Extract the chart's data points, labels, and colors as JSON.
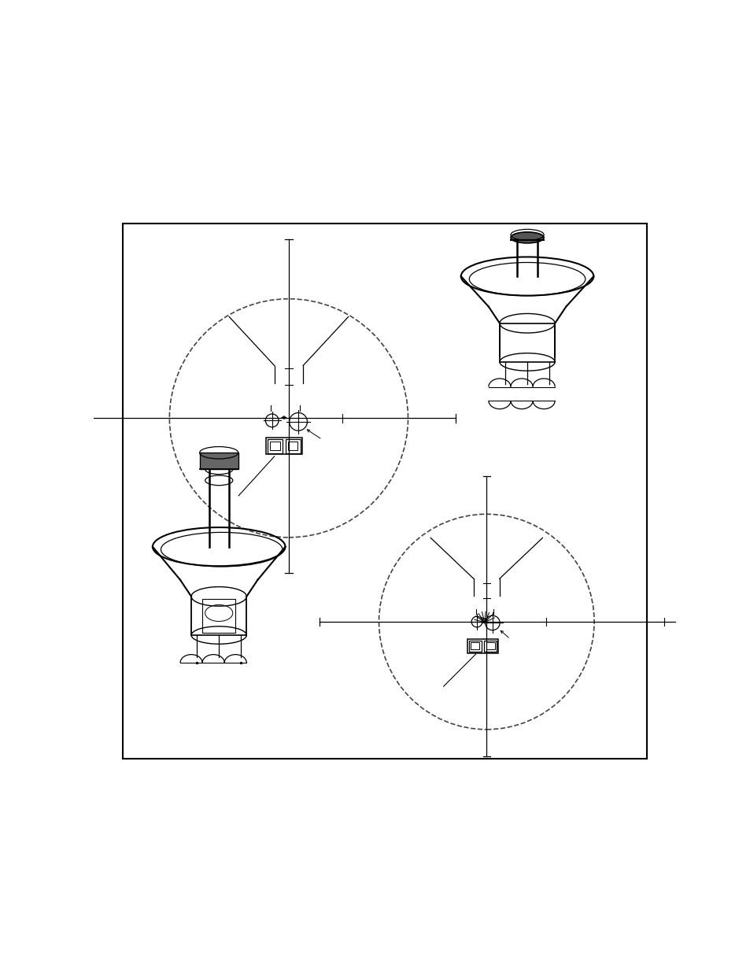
{
  "bg_color": "#ffffff",
  "border_color": "#000000",
  "line_color": "#000000",
  "page_width": 9.54,
  "page_height": 12.35
}
